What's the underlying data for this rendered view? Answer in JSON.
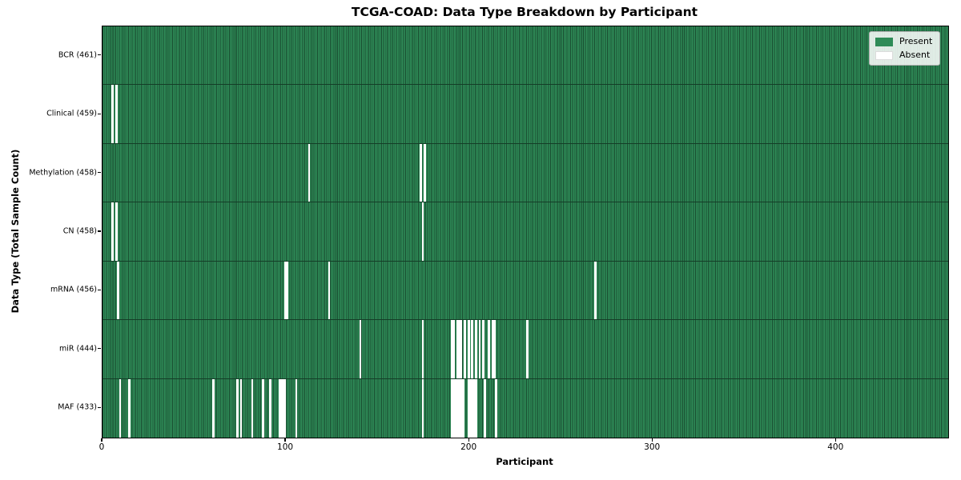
{
  "figure": {
    "title": "TCGA-COAD: Data Type Breakdown by Participant",
    "x_axis_label": "Participant",
    "y_axis_label": "Data Type (Total Sample Count)"
  },
  "legend": {
    "items": [
      {
        "label": "Present",
        "color": "#2e8b57"
      },
      {
        "label": "Absent",
        "color": "#ffffff"
      }
    ]
  },
  "chart_data": {
    "type": "heatmap",
    "title": "TCGA-COAD: Data Type Breakdown by Participant",
    "xlabel": "Participant",
    "ylabel": "Data Type (Total Sample Count)",
    "legend": [
      "Present",
      "Absent"
    ],
    "legend_position": "upper right",
    "grid": false,
    "n_participants": 461,
    "x_range": [
      0,
      461
    ],
    "x_ticks": [
      0,
      100,
      200,
      300,
      400
    ],
    "cell_present_color": "#2e8b57",
    "cell_absent_color": "#ffffff",
    "rows": [
      {
        "label": "BCR (461)",
        "data_type": "BCR",
        "total_present": 461,
        "absent_participant_indices": []
      },
      {
        "label": "Clinical (459)",
        "data_type": "Clinical",
        "total_present": 459,
        "absent_participant_indices": [
          5,
          7
        ]
      },
      {
        "label": "Methylation (458)",
        "data_type": "Methylation",
        "total_present": 458,
        "absent_participant_indices": [
          112,
          173,
          175
        ]
      },
      {
        "label": "CN (458)",
        "data_type": "CN",
        "total_present": 458,
        "absent_participant_indices": [
          5,
          7,
          174
        ]
      },
      {
        "label": "mRNA (456)",
        "data_type": "mRNA",
        "total_present": 456,
        "absent_participant_indices": [
          8,
          99,
          100,
          123,
          268
        ]
      },
      {
        "label": "miR (444)",
        "data_type": "miR",
        "total_present": 444,
        "absent_participant_indices": [
          140,
          174,
          190,
          191,
          193,
          194,
          195,
          197,
          199,
          201,
          203,
          205,
          207,
          210,
          212,
          213,
          231
        ]
      },
      {
        "label": "MAF (433)",
        "data_type": "MAF",
        "total_present": 433,
        "absent_participant_indices": [
          9,
          14,
          60,
          73,
          75,
          81,
          87,
          91,
          96,
          97,
          98,
          99,
          105,
          174,
          190,
          191,
          192,
          193,
          194,
          195,
          196,
          199,
          200,
          201,
          202,
          203,
          208,
          214
        ]
      }
    ]
  }
}
